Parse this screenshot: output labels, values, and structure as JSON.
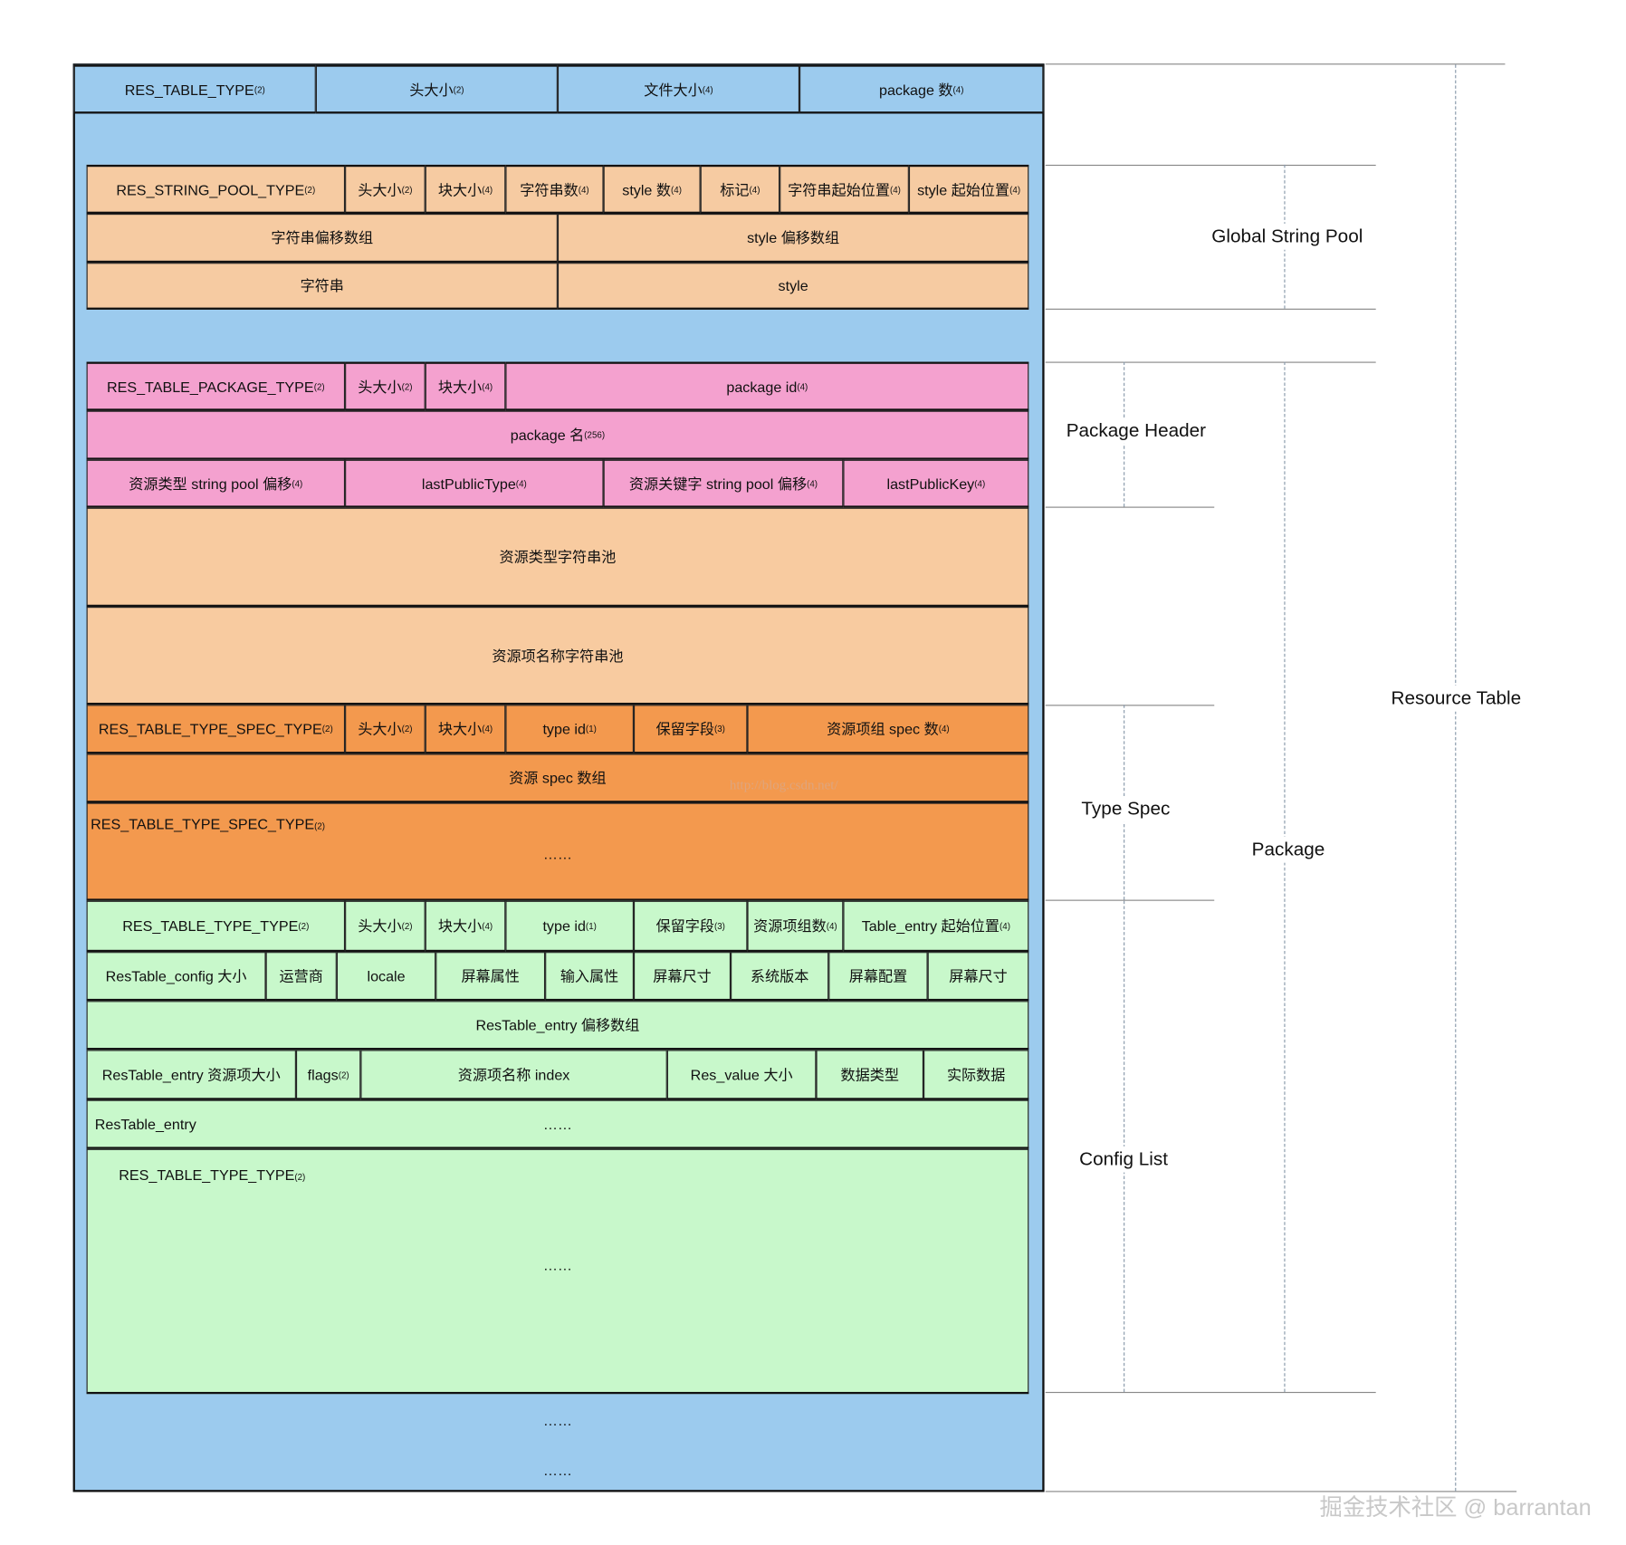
{
  "colors": {
    "resource_table": "#9ccbee",
    "string_pool": "#f6cba2",
    "package": "#f4a1cf",
    "pool": "#f8cba0",
    "type_spec": "#f3994e",
    "type": "#c8f8cb"
  },
  "rows": [
    {
      "cells": [
        {
          "t": "RES_TABLE_TYPE",
          "s": "(2)"
        },
        {
          "t": "头大小",
          "s": "(2)"
        },
        {
          "t": "文件大小",
          "s": "(4)"
        },
        {
          "t": "package 数",
          "s": "(4)"
        }
      ]
    },
    {
      "cells": [
        {
          "t": "RES_STRING_POOL_TYPE",
          "s": "(2)"
        },
        {
          "t": "头大小",
          "s": "(2)"
        },
        {
          "t": "块大小",
          "s": "(4)"
        },
        {
          "t": "字符串数",
          "s": "(4)"
        },
        {
          "t": "style 数",
          "s": "(4)"
        },
        {
          "t": "标记",
          "s": "(4)"
        },
        {
          "t": "字符串起始位置",
          "s": "(4)"
        },
        {
          "t": "style 起始位置",
          "s": "(4)"
        }
      ]
    },
    {
      "cells": [
        {
          "t": "字符串偏移数组"
        },
        {
          "t": "style 偏移数组"
        }
      ]
    },
    {
      "cells": [
        {
          "t": "字符串"
        },
        {
          "t": "style"
        }
      ]
    },
    {
      "cells": [
        {
          "t": "RES_TABLE_PACKAGE_TYPE",
          "s": "(2)"
        },
        {
          "t": "头大小",
          "s": "(2)"
        },
        {
          "t": "块大小",
          "s": "(4)"
        },
        {
          "t": "package id",
          "s": "(4)"
        }
      ]
    },
    {
      "cells": [
        {
          "t": "package 名",
          "s": "(256)"
        }
      ]
    },
    {
      "cells": [
        {
          "t": "资源类型 string pool 偏移",
          "s": "(4)"
        },
        {
          "t": "lastPublicType",
          "s": "(4)"
        },
        {
          "t": "资源关键字 string pool 偏移",
          "s": "(4)"
        },
        {
          "t": "lastPublicKey",
          "s": "(4)"
        }
      ]
    },
    {
      "cells": [
        {
          "t": "资源类型字符串池"
        }
      ]
    },
    {
      "cells": [
        {
          "t": "资源项名称字符串池"
        }
      ]
    },
    {
      "cells": [
        {
          "t": "RES_TABLE_TYPE_SPEC_TYPE",
          "s": "(2)"
        },
        {
          "t": "头大小",
          "s": "(2)"
        },
        {
          "t": "块大小",
          "s": "(4)"
        },
        {
          "t": "type id",
          "s": "(1)"
        },
        {
          "t": "保留字段",
          "s": "(3)"
        },
        {
          "t": "资源项组 spec 数",
          "s": "(4)"
        }
      ]
    },
    {
      "cells": [
        {
          "t": "资源 spec 数组"
        }
      ]
    },
    {
      "cells": [
        {
          "t": "RES_TABLE_TYPE_SPEC_TYPE",
          "s": "(2)"
        },
        {
          "t": "……"
        }
      ]
    },
    {
      "cells": [
        {
          "t": "RES_TABLE_TYPE_TYPE",
          "s": "(2)"
        },
        {
          "t": "头大小",
          "s": "(2)"
        },
        {
          "t": "块大小",
          "s": "(4)"
        },
        {
          "t": "type id",
          "s": "(1)"
        },
        {
          "t": "保留字段",
          "s": "(3)"
        },
        {
          "t": "资源项组数",
          "s": "(4)"
        },
        {
          "t": "Table_entry 起始位置",
          "s": "(4)"
        }
      ]
    },
    {
      "cells": [
        {
          "t": "ResTable_config 大小"
        },
        {
          "t": "运营商"
        },
        {
          "t": "locale"
        },
        {
          "t": "屏幕属性"
        },
        {
          "t": "输入属性"
        },
        {
          "t": "屏幕尺寸"
        },
        {
          "t": "系统版本"
        },
        {
          "t": "屏幕配置"
        },
        {
          "t": "屏幕尺寸"
        }
      ]
    },
    {
      "cells": [
        {
          "t": "ResTable_entry 偏移数组"
        }
      ]
    },
    {
      "cells": [
        {
          "t": "ResTable_entry 资源项大小"
        },
        {
          "t": "flags",
          "s": "(2)"
        },
        {
          "t": "资源项名称 index"
        },
        {
          "t": "Res_value 大小"
        },
        {
          "t": "数据类型"
        },
        {
          "t": "实际数据"
        }
      ]
    },
    {
      "cells": [
        {
          "t": "ResTable_entry"
        },
        {
          "t": "……"
        }
      ]
    },
    {
      "cells": [
        {
          "t": "RES_TABLE_TYPE_TYPE",
          "s": "(2)"
        },
        {
          "t": "……"
        }
      ]
    }
  ],
  "trailing": [
    "……",
    "……"
  ],
  "annotations": {
    "global_string_pool": "Global String Pool",
    "package_header": "Package Header",
    "type_spec": "Type Spec",
    "config_list": "Config List",
    "package": "Package",
    "resource_table": "Resource Table"
  },
  "watermark": "掘金技术社区 @ barrantan",
  "url_watermark": "http://blog.csdn.net/"
}
